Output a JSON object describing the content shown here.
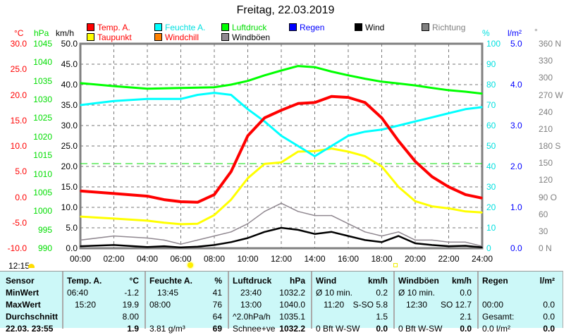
{
  "title": "Freitag, 22.03.2019",
  "legend": [
    {
      "label": "Temp. A.",
      "color": "#ff0000",
      "text_color": "#ff0000"
    },
    {
      "label": "Feuchte A.",
      "color": "#00ffff",
      "text_color": "#00e0e0"
    },
    {
      "label": "Luftdruck",
      "color": "#00ff00",
      "text_color": "#00dd00"
    },
    {
      "label": "Regen",
      "color": "#0000ff",
      "text_color": "#0000ff"
    },
    {
      "label": "Wind",
      "color": "#000000",
      "text_color": "#000000"
    },
    {
      "label": "Richtung",
      "color": "#808080",
      "text_color": "#808080"
    },
    {
      "label": "Taupunkt",
      "color": "#ffff00",
      "text_color": "#ff0000"
    },
    {
      "label": "Windchill",
      "color": "#ff8000",
      "text_color": "#ff0000"
    },
    {
      "label": "Windböen",
      "color": "#908890",
      "text_color": "#000000"
    }
  ],
  "axes": {
    "temp_unit": "°C",
    "hpa_unit": "hPa",
    "kmh_unit": "km/h",
    "pct_unit": "%",
    "rain_unit": "l/m²",
    "dir_unit": "°",
    "temp_ticks": [
      "30.0",
      "25.0",
      "20.0",
      "15.0",
      "10.0",
      "5.0",
      "0.0",
      "-5.0",
      "-10.0"
    ],
    "hpa_ticks": [
      "1045",
      "1040",
      "1035",
      "1030",
      "1025",
      "1020",
      "1015",
      "1010",
      "1005",
      "1000",
      "995",
      "990"
    ],
    "kmh_ticks": [
      "50.0",
      "45.0",
      "40.0",
      "35.0",
      "30.0",
      "25.0",
      "20.0",
      "15.0",
      "10.0",
      "5.0",
      "0.0"
    ],
    "pct_ticks": [
      "100",
      "90",
      "80",
      "70",
      "60",
      "50",
      "40",
      "30",
      "20",
      "10",
      "0"
    ],
    "rain_ticks": [
      "5.0",
      "4.0",
      "3.0",
      "2.0",
      "1.0",
      "0.0"
    ],
    "dir_ticks": [
      "360 N",
      "330",
      "300",
      "270 W",
      "240",
      "210",
      "180 S",
      "150",
      "120",
      "90 O",
      "60",
      "30",
      "0 N"
    ],
    "x_ticks": [
      "00:00",
      "02:00",
      "04:00",
      "06:00",
      "08:00",
      "10:00",
      "12:00",
      "14:00",
      "16:00",
      "18:00",
      "20:00",
      "22:00",
      "24:00"
    ]
  },
  "chart_data": {
    "type": "line",
    "title": "Freitag, 22.03.2019",
    "x_hours": [
      0,
      2,
      4,
      5,
      6,
      7,
      8,
      9,
      10,
      11,
      12,
      13,
      14,
      15,
      16,
      17,
      18,
      19,
      20,
      21,
      22,
      23,
      24
    ],
    "series": [
      {
        "name": "Temp. A.",
        "unit": "°C",
        "ylim": [
          -10,
          30
        ],
        "values": [
          1.2,
          0.7,
          0.2,
          -0.5,
          -0.9,
          -1.0,
          0.5,
          5,
          12,
          15.5,
          17,
          18.3,
          18.5,
          19.7,
          19.5,
          18.5,
          15.5,
          11,
          7,
          4,
          2,
          0.5,
          -0.2
        ]
      },
      {
        "name": "Taupunkt",
        "unit": "°C",
        "ylim": [
          -10,
          30
        ],
        "values": [
          -3.8,
          -4.2,
          -4.6,
          -5,
          -5.3,
          -5.2,
          -3.5,
          -0.5,
          3.7,
          6.5,
          6.8,
          8.9,
          9,
          9.5,
          8.9,
          8,
          6,
          2,
          -0.8,
          -1.8,
          -2.2,
          -2.8,
          -3
        ]
      },
      {
        "name": "Feuchte A.",
        "unit": "%",
        "ylim": [
          0,
          100
        ],
        "values": [
          70,
          72,
          73,
          73,
          73,
          75,
          76,
          75,
          68,
          62,
          55,
          50,
          45,
          50,
          55,
          57,
          58,
          60,
          62,
          64,
          66,
          68,
          69
        ]
      },
      {
        "name": "Luftdruck",
        "unit": "hPa",
        "ylim": [
          990,
          1045
        ],
        "values": [
          1034.4,
          1033.6,
          1032.9,
          1033,
          1033.1,
          1033.2,
          1033.3,
          1034,
          1035,
          1036.5,
          1037.8,
          1039,
          1038.7,
          1037.5,
          1036.5,
          1035.6,
          1034.8,
          1034.3,
          1033.8,
          1033.1,
          1032.5,
          1032.1,
          1031.6
        ]
      },
      {
        "name": "Wind",
        "unit": "km/h",
        "ylim": [
          0,
          50
        ],
        "values": [
          0.5,
          0.8,
          0.3,
          0.5,
          0.2,
          0.4,
          0.8,
          1.5,
          2.5,
          4,
          5,
          4.5,
          3.5,
          4,
          3,
          2,
          1.5,
          3,
          1.2,
          0.8,
          0.5,
          0.6,
          0.2
        ]
      },
      {
        "name": "Windböen",
        "unit": "km/h",
        "ylim": [
          0,
          50
        ],
        "values": [
          2,
          3,
          2.5,
          2,
          1,
          2,
          3,
          4,
          6,
          9,
          11,
          9,
          8,
          8,
          6,
          4,
          3,
          4,
          2,
          2,
          1.5,
          1.5,
          0.5
        ]
      }
    ],
    "xlabel": "",
    "ylabel": "km/h"
  },
  "status": {
    "time": "12:15"
  },
  "table": {
    "headers": [
      "Sensor",
      "Temp. A.",
      "°C",
      "Feuchte A.",
      "%",
      "Luftdruck",
      "hPa",
      "Wind",
      "km/h",
      "Windböen",
      "km/h",
      "Regen",
      "l/m²"
    ],
    "row_labels": [
      "MinWert",
      "MaxWert",
      "Durchschnitt",
      "22.03. 23:55"
    ],
    "temp": [
      [
        "06:40",
        "-1.2"
      ],
      [
        "15:20",
        "19.9"
      ],
      [
        "",
        "8.00"
      ],
      [
        "",
        "1.9"
      ]
    ],
    "hum": [
      [
        "13:45",
        "41"
      ],
      [
        "08:00",
        "76"
      ],
      [
        "",
        "64"
      ],
      [
        "3.81 g/m³",
        "69"
      ]
    ],
    "press": [
      [
        "23:40",
        "1032.2"
      ],
      [
        "13:00",
        "1040.0"
      ],
      [
        "^2.0hPa/h",
        "1035.1"
      ],
      [
        "Schnee+ve",
        "1032.2"
      ]
    ],
    "wind": [
      [
        "Ø 10 min.",
        "0.2"
      ],
      [
        "11:20",
        "S-SO 5.8"
      ],
      [
        "",
        "1.5"
      ],
      [
        "0 Bft W-SW",
        "0.0"
      ]
    ],
    "gust": [
      [
        "Ø 10 min.",
        "0.0"
      ],
      [
        "12:30",
        "SO 12.7"
      ],
      [
        "",
        "2.1"
      ],
      [
        "0 Bft W-SW",
        "0.0"
      ]
    ],
    "rain": [
      [
        "",
        ""
      ],
      [
        "00:00",
        "0.0"
      ],
      [
        "Gesamt:",
        "0.0"
      ],
      [
        "0.0 l/m²",
        "0.0"
      ]
    ]
  }
}
